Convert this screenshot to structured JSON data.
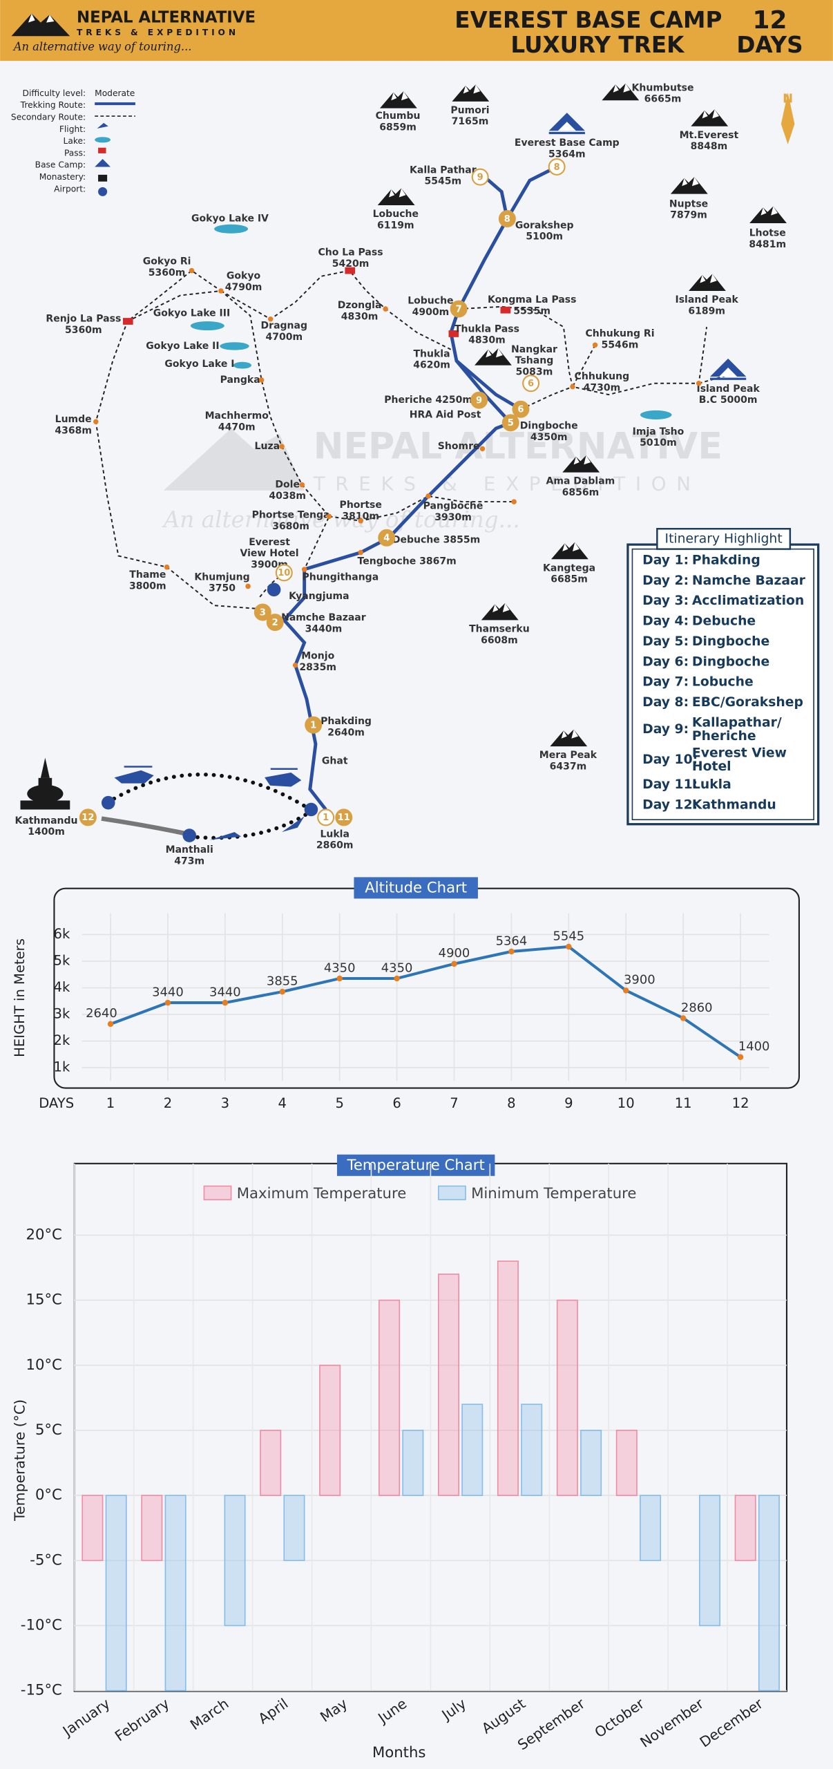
{
  "header": {
    "brand": "NEPAL ALTERNATIVE",
    "brand_sub": "TREKS & EXPEDITION",
    "tagline": "An alternative way of touring...",
    "title_line1": "EVEREST BASE CAMP",
    "title_line2": "LUXURY TREK",
    "days_number": "12",
    "days_word": "DAYS"
  },
  "map": {
    "legend": {
      "labels": [
        "Difficulty level:",
        "Trekking Route:",
        "Secondary Route:",
        "Flight:",
        "Lake:",
        "Pass:",
        "Base Camp:",
        "Monastery:",
        "Airport:"
      ],
      "difficulty": "Moderate"
    },
    "compass": "N",
    "watermark": {
      "name": "NEPAL ALTERNATIVE",
      "sub": "TREKS & EXPEDITION",
      "tagline": "An alternative way of touring..."
    },
    "peaks": [
      [
        "Chumbu",
        "6859m"
      ],
      [
        "Pumori",
        "7165m"
      ],
      [
        "Khumbutse",
        "6665m"
      ],
      [
        "Mt.Everest",
        "8848m"
      ],
      [
        "Everest Base Camp",
        "5364m"
      ],
      [
        "Nuptse",
        "7879m"
      ],
      [
        "Lhotse",
        "8481m"
      ],
      [
        "Lobuche",
        "6119m"
      ],
      [
        "Island Peak",
        "6189m"
      ],
      [
        "Island Peak",
        "B.C 5000m"
      ],
      [
        "Nangkar",
        "Tshang",
        "5083m"
      ],
      [
        "Ama Dablam",
        "6856m"
      ],
      [
        "Kangtega",
        "6685m"
      ],
      [
        "Thamserku",
        "6608m"
      ],
      [
        "Mera Peak",
        "6437m"
      ]
    ],
    "places": [
      [
        "Kalla Pathar",
        "5545m"
      ],
      [
        "Gorakshep",
        "5100m"
      ],
      [
        "Cho La Pass",
        "5420m"
      ],
      [
        "Gokyo Ri",
        "5360m"
      ],
      [
        "Gokyo",
        "4790m"
      ],
      [
        "Gokyo Lake IV"
      ],
      [
        "Gokyo Lake III"
      ],
      [
        "Gokyo Lake II"
      ],
      [
        "Gokyo Lake I"
      ],
      [
        "Dragnag",
        "4700m"
      ],
      [
        "Dzongla",
        "4830m"
      ],
      [
        "Lobuche",
        "4900m"
      ],
      [
        "Kongma La Pass",
        "5535m"
      ],
      [
        "Thukla Pass",
        "4830m"
      ],
      [
        "Chhukung Ri",
        "5546m"
      ],
      [
        "Chhukung",
        "4730m"
      ],
      [
        "Renjo La Pass",
        "5360m"
      ],
      [
        "Thukla",
        "4620m"
      ],
      [
        "Pangka"
      ],
      [
        "Pheriche 4250m"
      ],
      [
        "HRA Aid Post"
      ],
      [
        "Dingboche",
        "4350m"
      ],
      [
        "Imja Tsho",
        "5010m"
      ],
      [
        "Lumde",
        "4368m"
      ],
      [
        "Machhermo",
        "4470m"
      ],
      [
        "Luza"
      ],
      [
        "Shomre"
      ],
      [
        "Dole",
        "4038m"
      ],
      [
        "Phortse",
        "3810m"
      ],
      [
        "Pangboche",
        "3930m"
      ],
      [
        "Phortse Tenga",
        "3680m"
      ],
      [
        "Debuche 3855m"
      ],
      [
        "Everest",
        "View Hotel",
        "3900m"
      ],
      [
        "Tengboche 3867m"
      ],
      [
        "Thame",
        "3800m"
      ],
      [
        "Khumjung",
        "3750"
      ],
      [
        "Phungithanga"
      ],
      [
        "Kyangjuma"
      ],
      [
        "Namche Bazaar",
        "3440m"
      ],
      [
        "Monjo",
        "2835m"
      ],
      [
        "Phakding",
        "2640m"
      ],
      [
        "Ghat"
      ],
      [
        "Kathmandu",
        "1400m"
      ],
      [
        "Lukla",
        "2860m"
      ],
      [
        "Manthali",
        "473m"
      ]
    ],
    "day_markers": [
      1,
      2,
      3,
      4,
      5,
      6,
      6,
      7,
      8,
      8,
      9,
      9,
      10,
      11,
      1,
      12
    ]
  },
  "itinerary": {
    "title": "Itinerary Highlight",
    "rows": [
      [
        "Day 1:",
        "Phakding"
      ],
      [
        "Day 2:",
        "Namche Bazaar"
      ],
      [
        "Day 3:",
        "Acclimatization"
      ],
      [
        "Day 4:",
        "Debuche"
      ],
      [
        "Day 5:",
        "Dingboche"
      ],
      [
        "Day 6:",
        "Dingboche"
      ],
      [
        "Day 7:",
        "Lobuche"
      ],
      [
        "Day 8:",
        "EBC/Gorakshep"
      ],
      [
        "Day 9:",
        "Kallapathar/",
        "Pheriche"
      ],
      [
        "Day 10:",
        "Everest View",
        "Hotel"
      ],
      [
        "Day 11:",
        "Lukla"
      ],
      [
        "Day 12:",
        "Kathmandu"
      ]
    ]
  },
  "chart_data": [
    {
      "type": "line",
      "title": "Altitude Chart",
      "ylabel": "HEIGHT in Meters",
      "xlabel": "DAYS",
      "x": [
        1,
        2,
        3,
        4,
        5,
        6,
        7,
        8,
        9,
        10,
        11,
        12
      ],
      "values": [
        2640,
        3440,
        3440,
        3855,
        4350,
        4350,
        4900,
        5364,
        5545,
        3900,
        2860,
        1400
      ],
      "color": "#2e75b6",
      "marker_color": "#e67e22",
      "xlim": [
        0.5,
        12.5
      ],
      "xticks": [
        1,
        2,
        3,
        4,
        5,
        6,
        7,
        8,
        9,
        10,
        11,
        12
      ],
      "ylim": [
        500,
        6800
      ],
      "yticks": [
        {
          "value": 1000,
          "label": "1k"
        },
        {
          "value": 2000,
          "label": "2k"
        },
        {
          "value": 3000,
          "label": "3k"
        },
        {
          "value": 4000,
          "label": "4k"
        },
        {
          "value": 5000,
          "label": "5k"
        },
        {
          "value": 6000,
          "label": "6k"
        }
      ],
      "grid": true
    },
    {
      "type": "bar",
      "title": "Temperature Chart",
      "ylabel": "Temperature (°C)",
      "xlabel": "Months",
      "categories": [
        "January",
        "February",
        "March",
        "April",
        "May",
        "June",
        "July",
        "August",
        "September",
        "October",
        "November",
        "December"
      ],
      "series": [
        {
          "name": "Maximum Temperature",
          "color": "#f08ca4",
          "values": [
            -5,
            -5,
            0,
            5,
            10,
            15,
            17,
            18,
            15,
            5,
            0,
            -5
          ]
        },
        {
          "name": "Minimum Temperature",
          "color": "#86bde8",
          "values": [
            -15,
            -15,
            -10,
            -5,
            0,
            5,
            7,
            7,
            5,
            -5,
            -10,
            -15
          ]
        }
      ],
      "ylim": [
        -15,
        25.5
      ],
      "yticks": [
        {
          "value": -15,
          "label": "-15°C"
        },
        {
          "value": -10,
          "label": "-10°C"
        },
        {
          "value": -5,
          "label": "-5°C"
        },
        {
          "value": 0,
          "label": "0°C"
        },
        {
          "value": 5,
          "label": "5°C"
        },
        {
          "value": 10,
          "label": "10°C"
        },
        {
          "value": 15,
          "label": "15°C"
        },
        {
          "value": 20,
          "label": "20°C"
        }
      ],
      "grid": true,
      "legend": "top"
    }
  ]
}
